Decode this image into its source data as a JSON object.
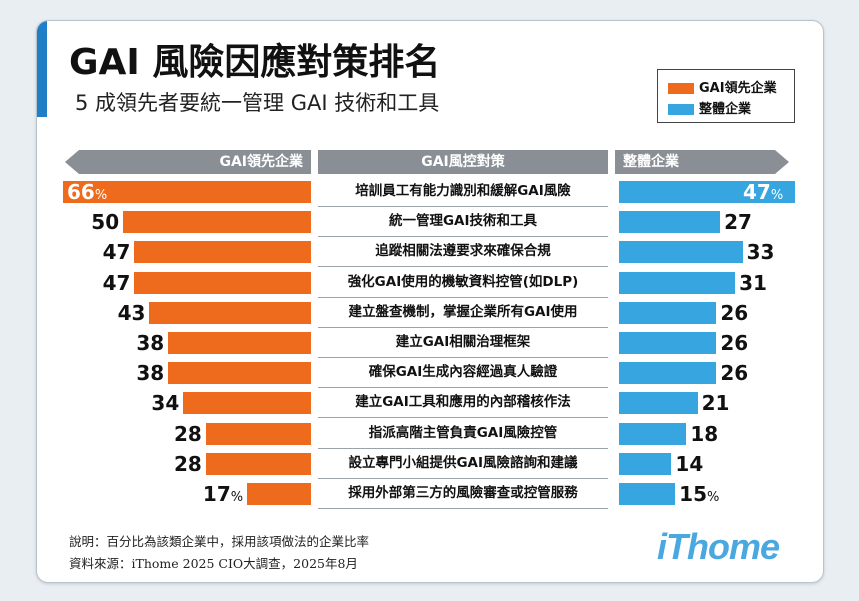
{
  "title": "GAI 風險因應對策排名",
  "subtitle": "5 成領先者要統一管理 GAI 技術和工具",
  "legend": {
    "items": [
      {
        "label": "GAI領先企業",
        "color": "#ee6a1c"
      },
      {
        "label": "整體企業",
        "color": "#36a5e0"
      }
    ]
  },
  "headers": {
    "left": "GAI領先企業",
    "middle": "GAI風控對策",
    "right": "整體企業"
  },
  "chart_data": {
    "type": "bar",
    "categories": [
      "培訓員工有能力識別和緩解GAI風險",
      "統一管理GAI技術和工具",
      "追蹤相關法遵要求來確保合規",
      "強化GAI使用的機敏資料控管(如DLP)",
      "建立盤查機制，掌握企業所有GAI使用",
      "建立GAI相關治理框架",
      "確保GAI生成內容經過真人驗證",
      "建立GAI工具和應用的內部稽核作法",
      "指派高階主管負責GAI風險控管",
      "設立專門小組提供GAI風險諮詢和建議",
      "採用外部第三方的風險審查或控管服務"
    ],
    "series": [
      {
        "name": "GAI領先企業",
        "values": [
          66,
          50,
          47,
          47,
          43,
          38,
          38,
          34,
          28,
          28,
          17
        ],
        "color": "#ee6a1c"
      },
      {
        "name": "整體企業",
        "values": [
          47,
          27,
          33,
          31,
          26,
          26,
          26,
          21,
          18,
          14,
          15
        ],
        "color": "#36a5e0"
      }
    ],
    "unit": "%"
  },
  "footnotes": {
    "note": "說明：百分比為該類企業中，採用該項做法的企業比率",
    "source": "資料來源：iThome 2025 CIO大調查，2025年8月"
  },
  "logo": "iThome"
}
